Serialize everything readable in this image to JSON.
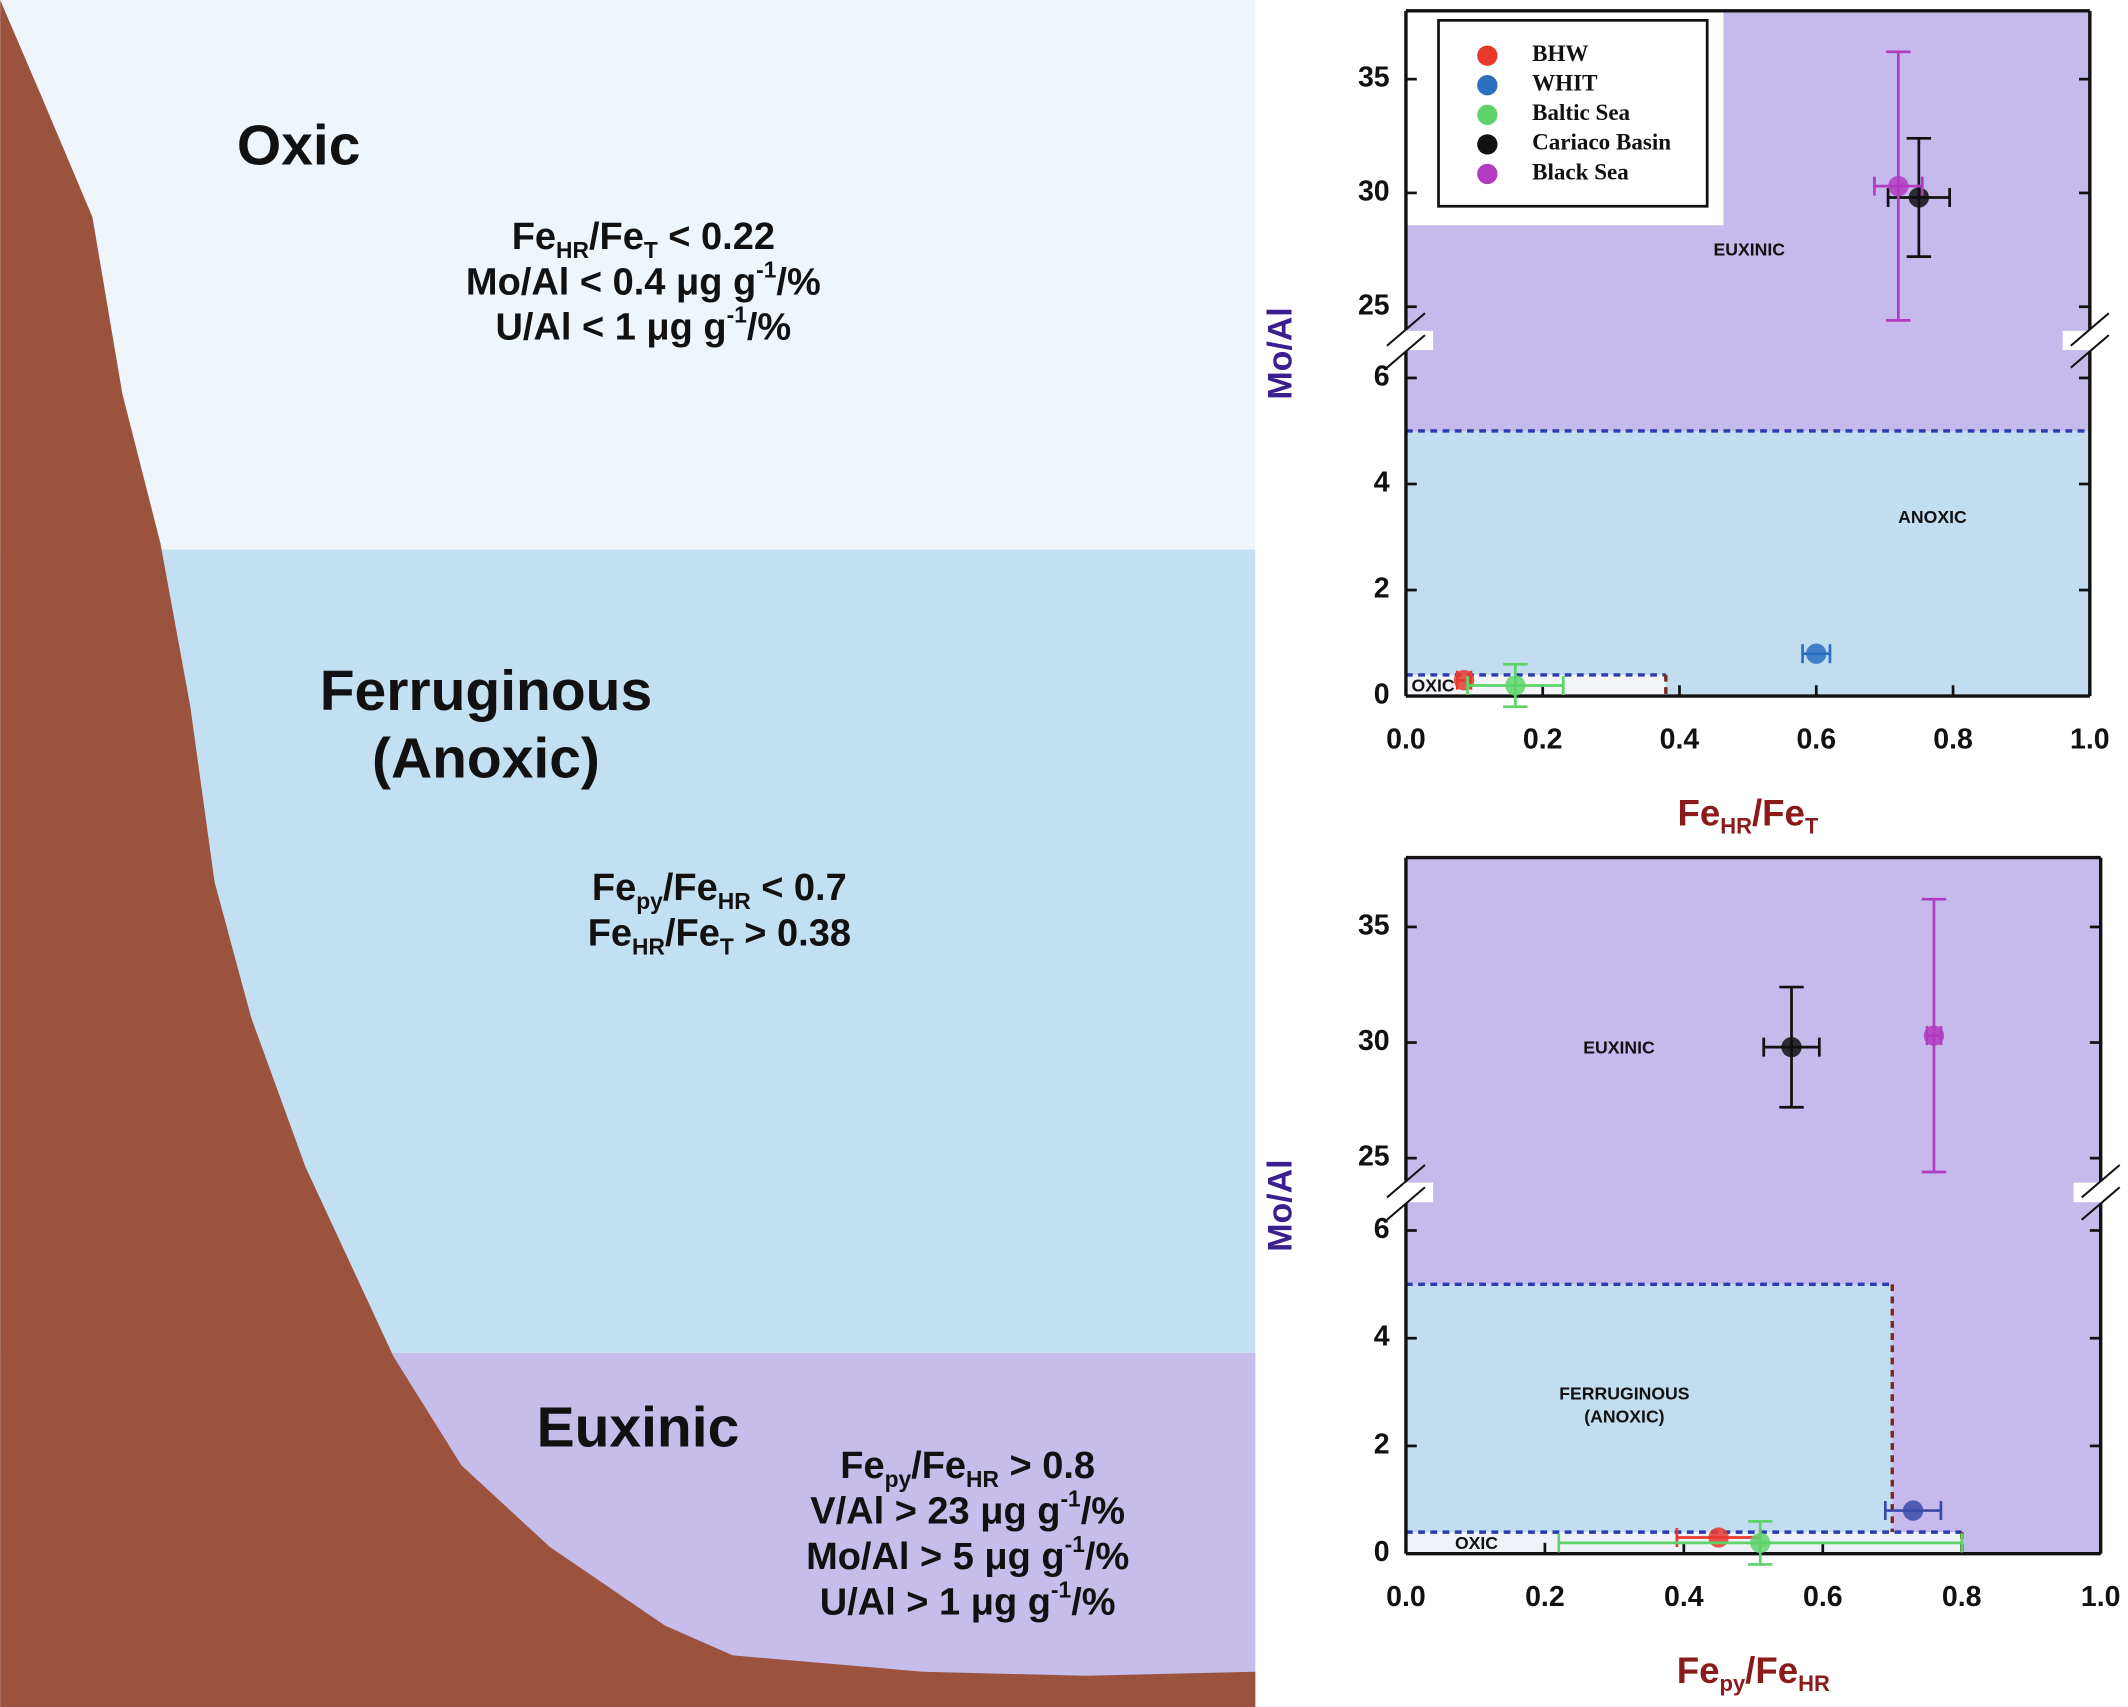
{
  "zones": [
    {
      "title": [
        "Oxic"
      ],
      "color": "#eef5fb",
      "criteria": [
        [
          "Fe",
          {
            "sub": "HR"
          },
          "/Fe",
          {
            "sub": "T"
          },
          " < 0.22"
        ],
        [
          "Mo/Al < 0.4 μg g",
          {
            "sup": "-1"
          },
          "/%"
        ],
        [
          "U/Al < 1 μg g",
          {
            "sup": "-1"
          },
          "/%"
        ]
      ]
    },
    {
      "title": [
        "Ferruginous",
        "(Anoxic)"
      ],
      "color": "#c3dff2",
      "criteria": [
        [
          "Fe",
          {
            "sub": "py"
          },
          "/Fe",
          {
            "sub": "HR"
          },
          " < 0.7"
        ],
        [
          "Fe",
          {
            "sub": "HR"
          },
          "/Fe",
          {
            "sub": "T"
          },
          " > 0.38"
        ]
      ]
    },
    {
      "title": [
        "Euxinic"
      ],
      "color": "#c6bdea",
      "criteria": [
        [
          "Fe",
          {
            "sub": "py"
          },
          "/Fe",
          {
            "sub": "HR"
          },
          " > 0.8"
        ],
        [
          "V/Al > 23 μg g",
          {
            "sup": "-1"
          },
          "/%"
        ],
        [
          "Mo/Al > 5 μg g",
          {
            "sup": "-1"
          },
          "/%"
        ],
        [
          "U/Al > 1 μg g",
          {
            "sup": "-1"
          },
          "/%"
        ]
      ]
    }
  ],
  "chart_data": [
    {
      "type": "scatter",
      "xlabel": [
        "Fe",
        {
          "sub": "HR"
        },
        "/Fe",
        {
          "sub": "T"
        }
      ],
      "ylabel": "Mo/Al",
      "xlim": [
        0,
        1
      ],
      "xticks": [
        {
          "value": 0,
          "label": "0.0"
        },
        0.2,
        0.4,
        0.6,
        0.8,
        {
          "value": 1,
          "label": "1.0"
        }
      ],
      "ylim": [
        0,
        38
      ],
      "ybreak": [
        6.5,
        24
      ],
      "yticks": [
        0,
        2,
        4,
        6,
        25,
        30,
        35
      ],
      "legend": true,
      "legend_loc": "upper left",
      "regions": [
        {
          "label": [
            "EUXINIC"
          ],
          "color": "#c6b9ec"
        },
        {
          "label": [
            "ANOXIC"
          ],
          "color": "#c2ddf0",
          "x": [
            0,
            1
          ],
          "y": [
            0,
            5
          ]
        },
        {
          "label": [
            "OXIC"
          ],
          "color": "#f3f5f8",
          "x": [
            0,
            0.38
          ],
          "y": [
            0,
            0.4
          ]
        }
      ],
      "series": [
        {
          "name": "BHW",
          "color": "#e8392f",
          "x": [
            0.085
          ],
          "y": [
            0.3
          ],
          "xerr": [
            0.01
          ],
          "yerr": [
            null
          ]
        },
        {
          "name": "WHIT",
          "color": "#2a6fc0",
          "x": [
            0.6
          ],
          "y": [
            0.8
          ],
          "xerr": [
            0.02
          ],
          "yerr": [
            null
          ]
        },
        {
          "name": "Baltic Sea",
          "color": "#5dd36a",
          "x": [
            0.16
          ],
          "y": [
            0.2
          ],
          "xerr": [
            0.07
          ],
          "yerr": [
            0.4
          ]
        },
        {
          "name": "Cariaco Basin",
          "color": "#111111",
          "x": [
            0.75
          ],
          "y": [
            29.8
          ],
          "xerr": [
            0.045
          ],
          "yerr": [
            2.6
          ]
        },
        {
          "name": "Black Sea",
          "color": "#b23bbf",
          "x": [
            0.72
          ],
          "y": [
            30.3
          ],
          "xerr": [
            0.035
          ],
          "yerr": [
            5.9
          ]
        }
      ]
    },
    {
      "type": "scatter",
      "xlabel": [
        "Fe",
        {
          "sub": "py"
        },
        "/Fe",
        {
          "sub": "HR"
        }
      ],
      "ylabel": "Mo/Al",
      "xlim": [
        0,
        1
      ],
      "xticks": [
        {
          "value": 0,
          "label": "0.0"
        },
        0.2,
        0.4,
        0.6,
        0.8,
        {
          "value": 1,
          "label": "1.0"
        }
      ],
      "ylim": [
        0,
        38
      ],
      "ybreak": [
        6.5,
        24
      ],
      "yticks": [
        0,
        2,
        4,
        6,
        25,
        30,
        35
      ],
      "legend": false,
      "regions": [
        {
          "label": [
            "EUXINIC"
          ],
          "color": "#c6b9ec"
        },
        {
          "label": [
            "FERRUGINOUS",
            "(ANOXIC)"
          ],
          "color": "#c2ddf0",
          "x": [
            0,
            0.7
          ],
          "y": [
            0,
            5
          ]
        },
        {
          "label": [
            "OXIC"
          ],
          "color": "#eef2f7",
          "x": [
            0,
            0.8
          ],
          "y": [
            0,
            0.4
          ]
        }
      ],
      "series": [
        {
          "name": "BHW",
          "color": "#e8392f",
          "x": [
            0.45
          ],
          "y": [
            0.3
          ],
          "xerr": [
            0.06
          ],
          "yerr": [
            null
          ]
        },
        {
          "name": "WHIT",
          "color": "#3a4aa8",
          "x": [
            0.73
          ],
          "y": [
            0.8
          ],
          "xerr": [
            0.04
          ],
          "yerr": [
            null
          ]
        },
        {
          "name": "Baltic Sea",
          "color": "#5dd36a",
          "x": [
            0.51
          ],
          "y": [
            0.2
          ],
          "xerr": [
            0.29
          ],
          "yerr": [
            0.4
          ]
        },
        {
          "name": "Cariaco Basin",
          "color": "#111111",
          "x": [
            0.555
          ],
          "y": [
            29.8
          ],
          "xerr": [
            0.04
          ],
          "yerr": [
            2.6
          ]
        },
        {
          "name": "Black Sea",
          "color": "#b23bbf",
          "x": [
            0.76
          ],
          "y": [
            30.3
          ],
          "xerr": [
            0.01
          ],
          "yerr": [
            5.9
          ]
        }
      ]
    }
  ]
}
